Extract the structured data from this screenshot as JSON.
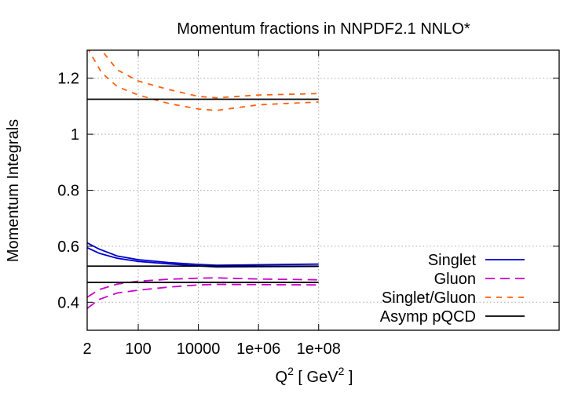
{
  "chart_data": {
    "type": "line",
    "title": "Momentum fractions in NNPDF2.1 NNLO*",
    "xlabel": "Q",
    "xlabel_sup": "2",
    "xlabel_unit": "[ GeV",
    "xlabel_unit_sup": "2",
    "xlabel_close": "]",
    "ylabel": "Momentum Integrals",
    "xscale": "log",
    "xlim": [
      2,
      1e+16
    ],
    "ylim": [
      0.3,
      1.3
    ],
    "grid": true,
    "legend_position": "bottom-right",
    "xticks": [
      {
        "value": 2,
        "label": "2"
      },
      {
        "value": 100,
        "label": "100"
      },
      {
        "value": 10000,
        "label": "10000"
      },
      {
        "value": 1000000,
        "label": "1e+06"
      },
      {
        "value": 100000000,
        "label": "1e+08"
      }
    ],
    "yticks": [
      {
        "value": 0.4,
        "label": "0.4"
      },
      {
        "value": 0.6,
        "label": "0.6"
      },
      {
        "value": 0.8,
        "label": "0.8"
      },
      {
        "value": 1.0,
        "label": "1"
      },
      {
        "value": 1.2,
        "label": "1.2"
      }
    ],
    "series": [
      {
        "name": "Singlet",
        "color": "#0000cc",
        "dash": "solid",
        "bands": [
          {
            "x": [
              2,
              5,
              20,
              100,
              1000,
              10000,
              40000,
              1000000,
              100000000
            ],
            "y": [
              0.612,
              0.59,
              0.565,
              0.552,
              0.542,
              0.535,
              0.532,
              0.534,
              0.536
            ]
          },
          {
            "x": [
              2,
              5,
              20,
              100,
              1000,
              10000,
              40000,
              1000000,
              100000000
            ],
            "y": [
              0.595,
              0.575,
              0.557,
              0.546,
              0.537,
              0.53,
              0.526,
              0.527,
              0.528
            ]
          }
        ]
      },
      {
        "name": "Gluon",
        "color": "#cc00cc",
        "dash": "long",
        "bands": [
          {
            "x": [
              2,
              5,
              20,
              100,
              1000,
              10000,
              40000,
              1000000,
              100000000
            ],
            "y": [
              0.418,
              0.445,
              0.465,
              0.475,
              0.482,
              0.486,
              0.487,
              0.483,
              0.48
            ]
          },
          {
            "x": [
              2,
              5,
              20,
              100,
              1000,
              10000,
              40000,
              1000000,
              100000000
            ],
            "y": [
              0.378,
              0.41,
              0.433,
              0.443,
              0.454,
              0.462,
              0.464,
              0.463,
              0.462
            ]
          }
        ]
      },
      {
        "name": "Singlet/Gluon",
        "color": "#ff6010",
        "dash": "short",
        "bands": [
          {
            "x": [
              2,
              6,
              20,
              100,
              1000,
              10000,
              40000,
              1000000,
              100000000
            ],
            "y": [
              1.39,
              1.3,
              1.23,
              1.19,
              1.16,
              1.135,
              1.13,
              1.14,
              1.145
            ]
          },
          {
            "x": [
              2,
              6,
              20,
              100,
              1000,
              10000,
              40000,
              1000000,
              100000000
            ],
            "y": [
              1.31,
              1.22,
              1.17,
              1.14,
              1.11,
              1.09,
              1.085,
              1.105,
              1.115
            ]
          }
        ]
      },
      {
        "name": "Asymp pQCD",
        "color": "#000000",
        "dash": "solid",
        "hlines": [
          {
            "x": [
              2,
              100000000
            ],
            "y": 1.125
          },
          {
            "x": [
              2,
              100000000
            ],
            "y": 0.529
          },
          {
            "x": [
              2,
              100000000
            ],
            "y": 0.471
          }
        ]
      }
    ]
  }
}
